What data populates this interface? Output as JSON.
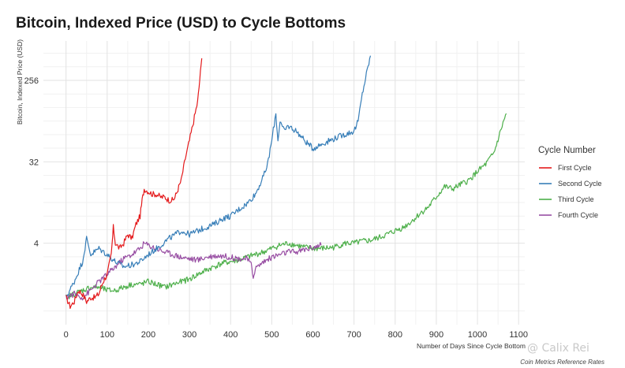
{
  "chart_data": {
    "type": "line",
    "title": "Bitcoin, Indexed Price (USD) to Cycle Bottoms",
    "xlabel": "Number of Days Since Cycle Bottom",
    "ylabel": "Bitcoin, Indexed Price (USD)",
    "caption": "Coin Metrics Reference Rates",
    "watermark": "@ Calix Rei",
    "y_scale": "log2",
    "xlim": [
      -55,
      1115
    ],
    "ylim": [
      0.5,
      700
    ],
    "x_ticks": [
      0,
      100,
      200,
      300,
      400,
      500,
      600,
      700,
      800,
      900,
      1000,
      1100
    ],
    "x_tick_labels": [
      "0",
      "100",
      "200",
      "300",
      "400",
      "500",
      "600",
      "700",
      "800",
      "900",
      "1000",
      "1100"
    ],
    "y_ticks": [
      4,
      32,
      256
    ],
    "y_tick_labels": [
      "4",
      "32",
      "256"
    ],
    "legend": {
      "title": "Cycle Number",
      "position": "right"
    },
    "series": [
      {
        "name": "First Cycle",
        "color": "#e41a1c",
        "x": [
          0,
          10,
          20,
          30,
          40,
          50,
          60,
          70,
          80,
          85,
          90,
          100,
          110,
          115,
          120,
          130,
          140,
          150,
          160,
          170,
          180,
          185,
          190,
          200,
          210,
          220,
          230,
          240,
          250,
          260,
          265,
          270,
          280,
          290,
          300,
          310,
          320,
          325,
          330
        ],
        "y": [
          1,
          0.8,
          0.9,
          1.2,
          1.1,
          0.9,
          1.0,
          1.0,
          1.1,
          1.3,
          1.5,
          1.8,
          3.0,
          6.0,
          4.0,
          3.5,
          4.0,
          5.0,
          4.5,
          6.5,
          8.0,
          12,
          16,
          15,
          14,
          14,
          13,
          13,
          12,
          12,
          13,
          15,
          20,
          35,
          55,
          90,
          150,
          260,
          450
        ]
      },
      {
        "name": "Second Cycle",
        "color": "#377eb8",
        "x": [
          0,
          20,
          40,
          50,
          60,
          80,
          100,
          120,
          140,
          160,
          180,
          200,
          220,
          250,
          280,
          300,
          320,
          340,
          360,
          380,
          400,
          420,
          440,
          460,
          480,
          490,
          500,
          510,
          515,
          520,
          530,
          540,
          560,
          580,
          600,
          620,
          640,
          660,
          680,
          700,
          710,
          720,
          730,
          740
        ],
        "y": [
          1,
          1.5,
          2.5,
          4.5,
          3.0,
          3.5,
          3.0,
          2.5,
          2.2,
          2.3,
          2.5,
          3.0,
          3.5,
          4.5,
          5.5,
          5.0,
          5.5,
          6.0,
          6.5,
          7.5,
          8.0,
          9.5,
          11,
          14,
          22,
          30,
          55,
          110,
          55,
          90,
          70,
          80,
          70,
          55,
          45,
          50,
          55,
          60,
          65,
          70,
          90,
          180,
          300,
          480
        ]
      },
      {
        "name": "Third Cycle",
        "color": "#4daf4a",
        "x": [
          0,
          20,
          40,
          60,
          80,
          100,
          120,
          140,
          160,
          180,
          200,
          220,
          240,
          260,
          280,
          300,
          320,
          340,
          360,
          380,
          400,
          420,
          440,
          460,
          480,
          500,
          520,
          540,
          560,
          580,
          600,
          620,
          650,
          680,
          700,
          720,
          740,
          760,
          780,
          800,
          820,
          840,
          860,
          880,
          900,
          920,
          940,
          960,
          980,
          1000,
          1020,
          1040,
          1060,
          1070
        ],
        "y": [
          1,
          1.1,
          1.2,
          1.3,
          1.3,
          1.2,
          1.2,
          1.3,
          1.4,
          1.4,
          1.5,
          1.4,
          1.3,
          1.4,
          1.5,
          1.6,
          1.8,
          2.0,
          2.2,
          2.4,
          2.5,
          2.6,
          2.8,
          3.0,
          3.2,
          3.5,
          3.8,
          4.0,
          3.8,
          3.6,
          3.5,
          3.5,
          3.6,
          4.0,
          4.0,
          4.2,
          4.3,
          4.6,
          5.0,
          5.5,
          6.0,
          7.0,
          8.5,
          10,
          13,
          17,
          16,
          18,
          20,
          25,
          30,
          40,
          80,
          110
        ]
      },
      {
        "name": "Fourth Cycle",
        "color": "#984ea3",
        "x": [
          0,
          20,
          40,
          60,
          80,
          100,
          120,
          140,
          160,
          180,
          190,
          200,
          220,
          240,
          260,
          280,
          300,
          320,
          340,
          360,
          380,
          400,
          420,
          440,
          450,
          455,
          460,
          480,
          500,
          520,
          540,
          560,
          580,
          600,
          620
        ],
        "y": [
          1,
          1.1,
          1.0,
          1.2,
          1.5,
          1.8,
          2.2,
          2.7,
          3.0,
          3.5,
          4.0,
          3.8,
          3.5,
          3.2,
          3.0,
          2.8,
          2.7,
          2.6,
          2.8,
          2.9,
          2.9,
          2.8,
          2.7,
          2.7,
          2.3,
          1.7,
          2.1,
          2.5,
          2.8,
          3.0,
          3.2,
          3.2,
          3.4,
          3.6,
          3.8
        ]
      }
    ]
  }
}
